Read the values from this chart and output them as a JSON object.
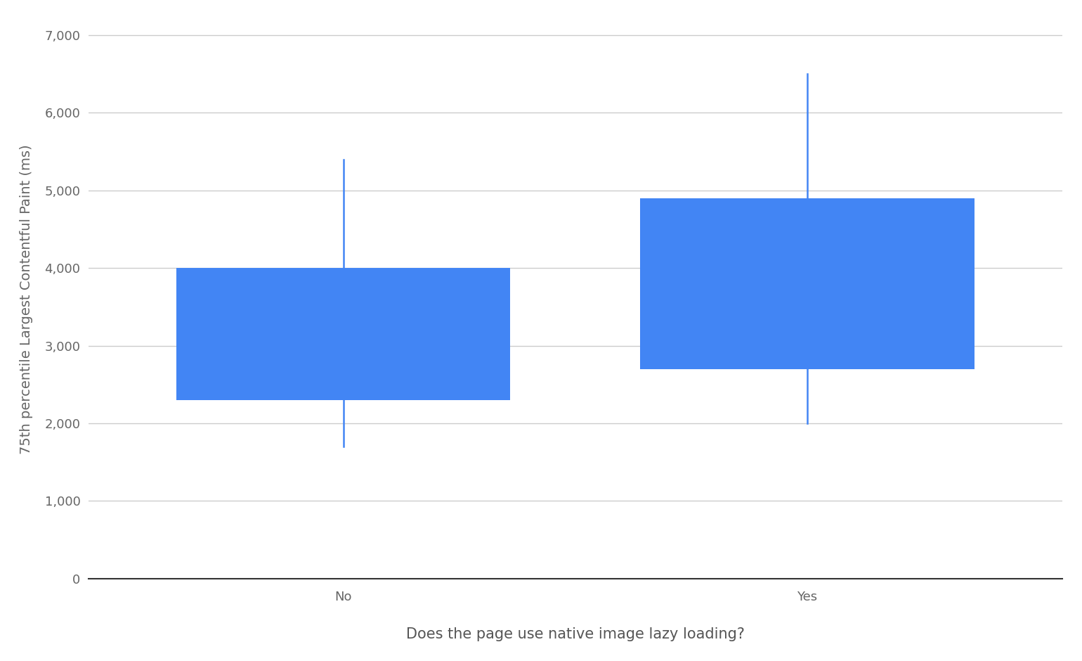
{
  "categories": [
    "No",
    "Yes"
  ],
  "boxes": [
    {
      "p10": 1700,
      "p25": 2300,
      "p75": 4000,
      "p90": 5400
    },
    {
      "p10": 2000,
      "p25": 2700,
      "p75": 4900,
      "p90": 6500
    }
  ],
  "box_color": "#4285F4",
  "whisker_color": "#4285F4",
  "box_width": 0.72,
  "ylabel": "75th percentile Largest Contentful Paint (ms)",
  "xlabel": "Does the page use native image lazy loading?",
  "ylim": [
    0,
    7200
  ],
  "yticks": [
    0,
    1000,
    2000,
    3000,
    4000,
    5000,
    6000,
    7000
  ],
  "ytick_labels": [
    "0",
    "1,000",
    "2,000",
    "3,000",
    "4,000",
    "5,000",
    "6,000",
    "7,000"
  ],
  "background_color": "#ffffff",
  "grid_color": "#cccccc",
  "label_fontsize": 14,
  "tick_fontsize": 13,
  "xlabel_fontsize": 15
}
